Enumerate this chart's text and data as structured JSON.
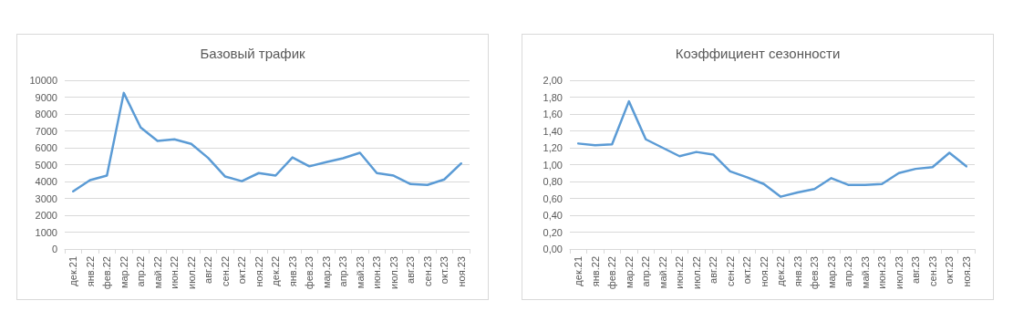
{
  "chart_data": [
    {
      "type": "line",
      "title": "Базовый трафик",
      "categories": [
        "дек.21",
        "янв.22",
        "фев.22",
        "мар.22",
        "апр.22",
        "май.22",
        "июн.22",
        "июл.22",
        "авг.22",
        "сен.22",
        "окт.22",
        "ноя.22",
        "дек.22",
        "янв.23",
        "фев.23",
        "мар.23",
        "апр.23",
        "май.23",
        "июн.23",
        "июл.23",
        "авг.23",
        "сен.23",
        "окт.23",
        "ноя.23"
      ],
      "series": [
        {
          "color": "#5b9bd5",
          "values": [
            3420,
            4080,
            4350,
            9250,
            7200,
            6400,
            6500,
            6230,
            5400,
            4300,
            4020,
            4500,
            4350,
            5430,
            4900,
            5150,
            5380,
            5700,
            4500,
            4350,
            3850,
            3800,
            4120,
            5070
          ]
        }
      ],
      "ylim": [
        0,
        10000
      ],
      "yticks": [
        0,
        1000,
        2000,
        3000,
        4000,
        5000,
        6000,
        7000,
        8000,
        9000,
        10000
      ],
      "grid": "y",
      "marker": "none",
      "line_style": "solid"
    },
    {
      "type": "line",
      "title": "Коэффициент сезонности",
      "categories": [
        "дек.21",
        "янв.22",
        "фев.22",
        "мар.22",
        "апр.22",
        "май.22",
        "июн.22",
        "июл.22",
        "авг.22",
        "сен.22",
        "окт.22",
        "ноя.22",
        "дек.22",
        "янв.23",
        "фев.23",
        "мар.23",
        "апр.23",
        "май.23",
        "июн.23",
        "июл.23",
        "авг.23",
        "сен.23",
        "окт.23",
        "ноя.23"
      ],
      "series": [
        {
          "color": "#5b9bd5",
          "values": [
            1.25,
            1.23,
            1.24,
            1.75,
            1.3,
            1.2,
            1.1,
            1.15,
            1.12,
            0.92,
            0.85,
            0.77,
            0.62,
            0.67,
            0.71,
            0.84,
            0.76,
            0.76,
            0.77,
            0.9,
            0.95,
            0.97,
            1.14,
            0.98
          ]
        }
      ],
      "ylim": [
        0,
        2
      ],
      "yticks": [
        {
          "value": 0,
          "label": "0,00"
        },
        {
          "value": 0.2,
          "label": "0,20"
        },
        {
          "value": 0.4,
          "label": "0,40"
        },
        {
          "value": 0.6,
          "label": "0,60"
        },
        {
          "value": 0.8,
          "label": "0,80"
        },
        {
          "value": 1,
          "label": "1,00"
        },
        {
          "value": 1.2,
          "label": "1,20"
        },
        {
          "value": 1.4,
          "label": "1,40"
        },
        {
          "value": 1.6,
          "label": "1,60"
        },
        {
          "value": 1.8,
          "label": "1,80"
        },
        {
          "value": 2,
          "label": "2,00"
        }
      ],
      "grid": "y",
      "marker": "none",
      "line_style": "solid"
    }
  ]
}
